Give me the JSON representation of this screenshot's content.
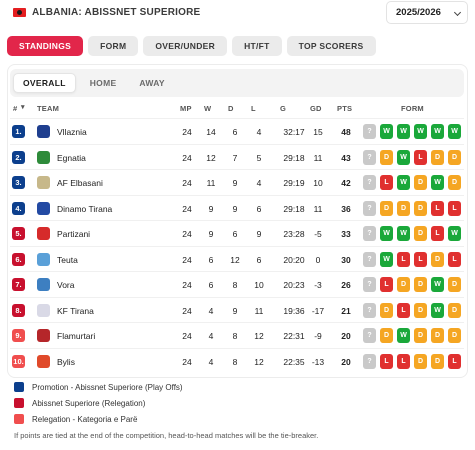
{
  "header": {
    "league": "ALBANIA: ABISSNET SUPERIORE",
    "season": "2025/2026"
  },
  "tabs": [
    "STANDINGS",
    "FORM",
    "OVER/UNDER",
    "HT/FT",
    "TOP SCORERS"
  ],
  "subtabs": [
    "OVERALL",
    "HOME",
    "AWAY"
  ],
  "columns": [
    "#",
    "TEAM",
    "MP",
    "W",
    "D",
    "L",
    "G",
    "GD",
    "PTS",
    "FORM"
  ],
  "colors": {
    "promotion": "#0c3f8d",
    "relegation_playoff": "#c8102e",
    "relegation": "#f04e4e",
    "win": "#1aa83a",
    "draw": "#f5a623",
    "loss": "#e0302f",
    "unknown": "#c9c9c9"
  },
  "rows": [
    {
      "pos": "1.",
      "zone": "promotion",
      "team": "Vllaznia",
      "logo": "#1f3f8f",
      "mp": "24",
      "w": "14",
      "d": "6",
      "l": "4",
      "g": "32:17",
      "gd": "15",
      "pts": "48",
      "form": [
        "?",
        "W",
        "W",
        "W",
        "W",
        "W"
      ]
    },
    {
      "pos": "2.",
      "zone": "promotion",
      "team": "Egnatia",
      "logo": "#2e8b3a",
      "mp": "24",
      "w": "12",
      "d": "7",
      "l": "5",
      "g": "29:18",
      "gd": "11",
      "pts": "43",
      "form": [
        "?",
        "D",
        "W",
        "L",
        "D",
        "D"
      ]
    },
    {
      "pos": "3.",
      "zone": "promotion",
      "team": "AF Elbasani",
      "logo": "#c7b88a",
      "mp": "24",
      "w": "11",
      "d": "9",
      "l": "4",
      "g": "29:19",
      "gd": "10",
      "pts": "42",
      "form": [
        "?",
        "L",
        "W",
        "D",
        "W",
        "D"
      ]
    },
    {
      "pos": "4.",
      "zone": "promotion",
      "team": "Dinamo Tirana",
      "logo": "#234aa3",
      "mp": "24",
      "w": "9",
      "d": "9",
      "l": "6",
      "g": "29:18",
      "gd": "11",
      "pts": "36",
      "form": [
        "?",
        "D",
        "D",
        "D",
        "L",
        "L"
      ]
    },
    {
      "pos": "5.",
      "zone": "relegation_playoff",
      "team": "Partizani",
      "logo": "#d62b2b",
      "mp": "24",
      "w": "9",
      "d": "6",
      "l": "9",
      "g": "23:28",
      "gd": "-5",
      "pts": "33",
      "form": [
        "?",
        "W",
        "W",
        "D",
        "L",
        "W"
      ]
    },
    {
      "pos": "6.",
      "zone": "relegation_playoff",
      "team": "Teuta",
      "logo": "#5aa0d8",
      "mp": "24",
      "w": "6",
      "d": "12",
      "l": "6",
      "g": "20:20",
      "gd": "0",
      "pts": "30",
      "form": [
        "?",
        "W",
        "L",
        "L",
        "D",
        "L"
      ]
    },
    {
      "pos": "7.",
      "zone": "relegation_playoff",
      "team": "Vora",
      "logo": "#3d7fc1",
      "mp": "24",
      "w": "6",
      "d": "8",
      "l": "10",
      "g": "20:23",
      "gd": "-3",
      "pts": "26",
      "form": [
        "?",
        "L",
        "D",
        "D",
        "W",
        "D"
      ]
    },
    {
      "pos": "8.",
      "zone": "relegation_playoff",
      "team": "KF Tirana",
      "logo": "#d9d9e6",
      "mp": "24",
      "w": "4",
      "d": "9",
      "l": "11",
      "g": "19:36",
      "gd": "-17",
      "pts": "21",
      "form": [
        "?",
        "D",
        "L",
        "D",
        "W",
        "D"
      ]
    },
    {
      "pos": "9.",
      "zone": "relegation",
      "team": "Flamurtari",
      "logo": "#b5262a",
      "mp": "24",
      "w": "4",
      "d": "8",
      "l": "12",
      "g": "22:31",
      "gd": "-9",
      "pts": "20",
      "form": [
        "?",
        "D",
        "W",
        "D",
        "D",
        "D"
      ]
    },
    {
      "pos": "10.",
      "zone": "relegation",
      "team": "Bylis",
      "logo": "#e04a2a",
      "mp": "24",
      "w": "4",
      "d": "8",
      "l": "12",
      "g": "22:35",
      "gd": "-13",
      "pts": "20",
      "form": [
        "?",
        "L",
        "L",
        "D",
        "D",
        "L"
      ]
    }
  ],
  "legend": [
    {
      "label": "Promotion - Abissnet Superiore (Play Offs)",
      "zone": "promotion"
    },
    {
      "label": "Abissnet Superiore (Relegation)",
      "zone": "relegation_playoff"
    },
    {
      "label": "Relegation - Kategoria e Parë",
      "zone": "relegation"
    }
  ],
  "note": "If points are tied at the end of the competition, head-to-head matches will be the tie-breaker."
}
